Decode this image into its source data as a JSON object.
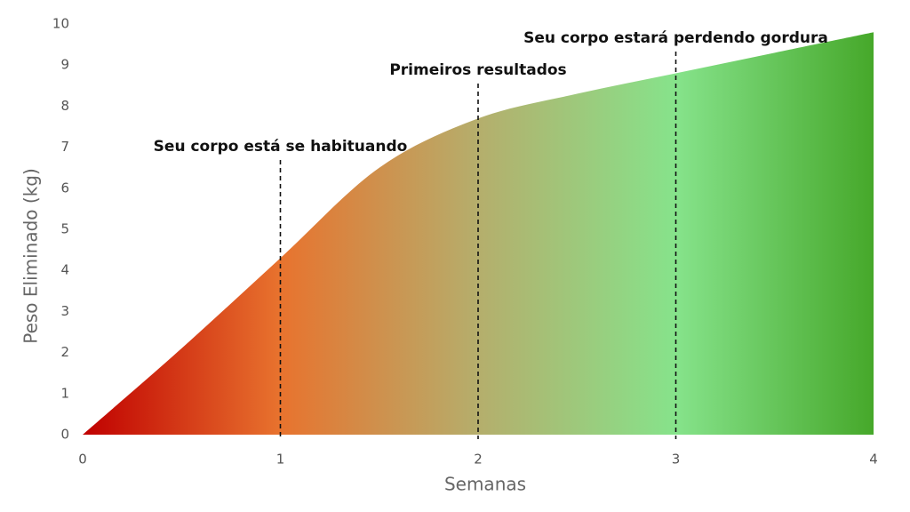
{
  "chart_data": {
    "type": "area",
    "x_label": "Semanas",
    "y_label": "Peso Eliminado (kg)",
    "x": [
      0,
      0.5,
      1,
      1.5,
      2,
      2.5,
      3,
      3.5,
      4
    ],
    "values": [
      0,
      2.1,
      4.3,
      6.5,
      7.7,
      8.3,
      8.8,
      9.3,
      9.8
    ],
    "gradient_colors": [
      "#c00000",
      "#e8732e",
      "#b5ae6c",
      "#86e38b",
      "#46a82a"
    ],
    "xlim": [
      0,
      4
    ],
    "xticks": [
      0,
      1,
      2,
      3,
      4
    ],
    "ylim": [
      0,
      10
    ],
    "yticks": [
      0,
      1,
      2,
      3,
      4,
      5,
      6,
      7,
      8,
      9,
      10
    ],
    "annotations": [
      {
        "x": 1,
        "text": "Seu corpo está se habituando"
      },
      {
        "x": 2,
        "text": "Primeiros resultados"
      },
      {
        "x": 3,
        "text": "Seu corpo estará perdendo gordura"
      }
    ]
  }
}
